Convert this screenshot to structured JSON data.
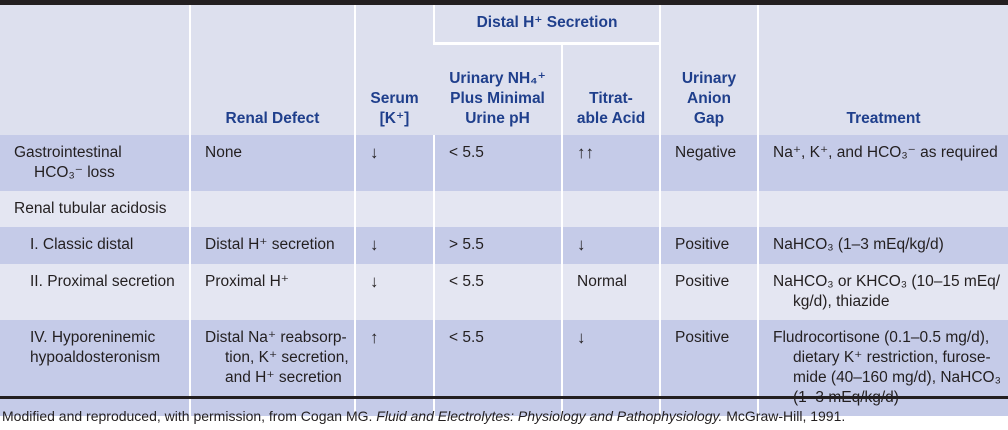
{
  "headers": {
    "renal_defect": "Renal Defect",
    "serum_k_line1": "Serum",
    "serum_k_line2": "[K⁺]",
    "distal_h_secretion": "Distal H⁺ Secretion",
    "urinary_nh4_line1": "Urinary NH₄⁺",
    "urinary_nh4_line2": "Plus Minimal",
    "urinary_nh4_line3": "Urine pH",
    "titratable_line1": "Titrat-",
    "titratable_line2": "able Acid",
    "anion_gap_line1": "Urinary",
    "anion_gap_line2": "Anion",
    "anion_gap_line3": "Gap",
    "treatment": "Treatment"
  },
  "rows": [
    {
      "condition": [
        "Gastrointestinal",
        "HCO₃⁻ loss"
      ],
      "renal_defect": [
        "None"
      ],
      "serum_k": "↓",
      "urine_ph": "< 5.5",
      "titratable_acid": "↑↑",
      "anion_gap": "Negative",
      "treatment": [
        "Na⁺, K⁺, and HCO₃⁻ as required"
      ]
    },
    {
      "condition": [
        "Renal tubular acidosis"
      ],
      "renal_defect": [],
      "serum_k": "",
      "urine_ph": "",
      "titratable_acid": "",
      "anion_gap": "",
      "treatment": []
    },
    {
      "condition": [
        "I. Classic distal"
      ],
      "renal_defect": [
        "Distal H⁺ secretion"
      ],
      "serum_k": "↓",
      "urine_ph": "> 5.5",
      "titratable_acid": "↓",
      "anion_gap": "Positive",
      "treatment": [
        "NaHCO₃ (1–3 mEq/kg/d)"
      ]
    },
    {
      "condition": [
        "II. Proximal secretion"
      ],
      "renal_defect": [
        "Proximal H⁺"
      ],
      "serum_k": "↓",
      "urine_ph": "< 5.5",
      "titratable_acid": "Normal",
      "anion_gap": "Positive",
      "treatment": [
        "NaHCO₃ or KHCO₃ (10–15 mEq/",
        "kg/d), thiazide"
      ]
    },
    {
      "condition": [
        "IV. Hyporeninemic",
        "hypoaldosteronism"
      ],
      "renal_defect": [
        "Distal Na⁺ reabsorp-",
        "tion, K⁺ secretion,",
        "and H⁺ secretion"
      ],
      "serum_k": "↑",
      "urine_ph": "< 5.5",
      "titratable_acid": "↓",
      "anion_gap": "Positive",
      "treatment": [
        "Fludrocortisone (0.1–0.5 mg/d),",
        "dietary K⁺ restriction, furose-",
        "mide (40–160 mg/d), NaHCO₃",
        "(1–3 mEq/kg/d)"
      ]
    }
  ],
  "footer": {
    "prefix": "Modified and reproduced, with permission, from Cogan MG. ",
    "title": "Fluid and Electrolytes: Physiology and Pathophysiology.",
    "suffix": " McGraw-Hill, 1991."
  }
}
